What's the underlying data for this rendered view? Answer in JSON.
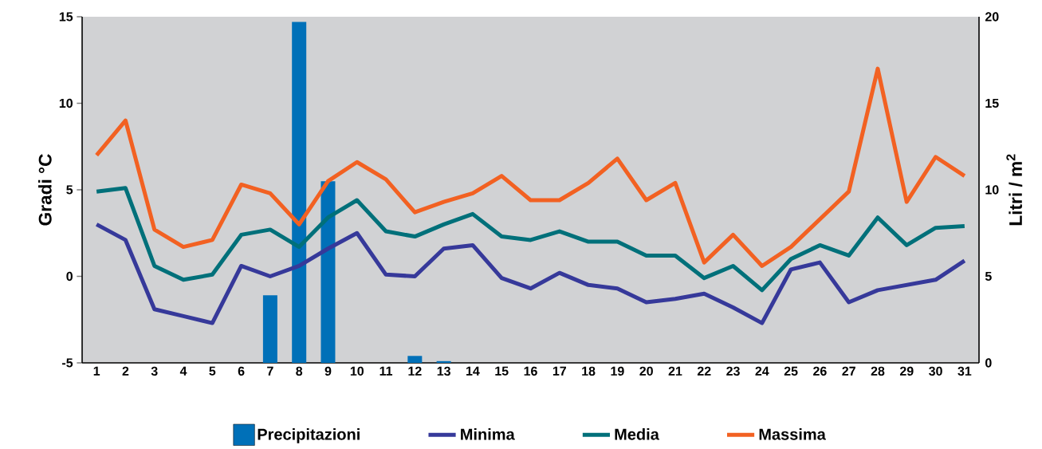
{
  "chart_data": {
    "type": "line",
    "categories": [
      "1",
      "2",
      "3",
      "4",
      "5",
      "6",
      "7",
      "8",
      "9",
      "10",
      "11",
      "12",
      "13",
      "14",
      "15",
      "16",
      "17",
      "18",
      "19",
      "20",
      "21",
      "22",
      "23",
      "24",
      "25",
      "26",
      "27",
      "28",
      "29",
      "30",
      "31"
    ],
    "ylabel": "Gradi °C",
    "y2label": "Litri / m$^{2}$",
    "ylim": [
      -5,
      15
    ],
    "yticks": [
      -5,
      0,
      5,
      10,
      15
    ],
    "y2lim": [
      0,
      20
    ],
    "y2ticks": [
      0,
      5,
      10,
      15,
      20
    ],
    "legend": "bottom",
    "grid": false,
    "series": [
      {
        "name": "Precipitazioni",
        "type": "bar",
        "axis": "y2",
        "color": "#0070b8",
        "values": [
          0,
          0,
          0,
          0,
          0,
          0,
          3.9,
          19.7,
          10.5,
          0,
          0,
          0.4,
          0.1,
          0,
          0,
          0,
          0,
          0,
          0,
          0,
          0,
          0,
          0,
          0,
          0,
          0,
          0,
          0,
          0,
          0,
          0
        ]
      },
      {
        "name": "Minima",
        "color": "#36399a",
        "values": [
          3.0,
          2.1,
          -1.9,
          -2.3,
          -2.7,
          0.6,
          0.0,
          0.6,
          1.6,
          2.5,
          0.1,
          0.0,
          1.6,
          1.8,
          -0.1,
          -0.7,
          0.2,
          -0.5,
          -0.7,
          -1.5,
          -1.3,
          -1.0,
          -1.8,
          -2.7,
          0.4,
          0.8,
          -1.5,
          -0.8,
          -0.5,
          -0.2,
          0.9
        ]
      },
      {
        "name": "Media",
        "color": "#00707a",
        "values": [
          4.9,
          5.1,
          0.6,
          -0.2,
          0.1,
          2.4,
          2.7,
          1.7,
          3.4,
          4.4,
          2.6,
          2.3,
          3.0,
          3.6,
          2.3,
          2.1,
          2.6,
          2.0,
          2.0,
          1.2,
          1.2,
          -0.1,
          0.6,
          -0.8,
          1.0,
          1.8,
          1.2,
          3.4,
          1.8,
          2.8,
          2.9
        ]
      },
      {
        "name": "Massima",
        "color": "#f26122",
        "values": [
          7.0,
          9.0,
          2.7,
          1.7,
          2.1,
          5.3,
          4.8,
          3.0,
          5.5,
          6.6,
          5.6,
          3.7,
          4.3,
          4.8,
          5.8,
          4.4,
          4.4,
          5.4,
          6.8,
          4.4,
          5.4,
          0.8,
          2.4,
          0.6,
          1.7,
          3.3,
          4.9,
          12.0,
          4.3,
          6.9,
          5.8
        ]
      }
    ]
  }
}
